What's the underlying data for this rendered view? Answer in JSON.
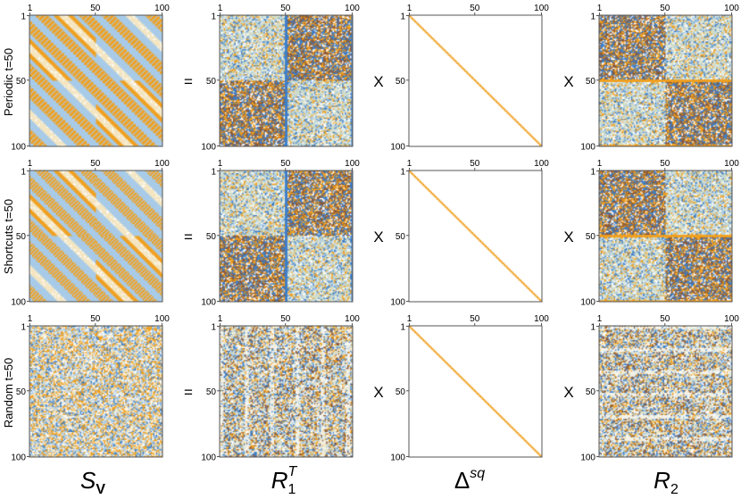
{
  "figure": {
    "row_labels": [
      "Periodic t=50",
      "Shortcuts t=50",
      "Random t=50"
    ],
    "operators": [
      "=",
      "X",
      "X"
    ],
    "tick_labels": [
      "1",
      "50",
      "100"
    ],
    "columns": [
      {
        "main": "S",
        "sub": "V",
        "sup": ""
      },
      {
        "main": "R",
        "sub": "1",
        "sup": "T"
      },
      {
        "main": "Δ",
        "sub": "",
        "sup": "sq"
      },
      {
        "main": "R",
        "sub": "2",
        "sup": ""
      }
    ],
    "matrix_types": [
      [
        "block-toeplitz",
        "oscillatory-blocks",
        "diagonal",
        "oscillatory-blocks-t"
      ],
      [
        "block-toeplitz-stripes",
        "oscillatory-blocks",
        "diagonal",
        "oscillatory-blocks-t"
      ],
      [
        "random",
        "random-blocks",
        "diagonal",
        "random-blocks-t"
      ]
    ],
    "matrix_size": 100,
    "colors": {
      "orange": "#f0a020",
      "blue": "#3f7fc8",
      "light_blue": "#a8cbe8",
      "cream": "#f4e6c2",
      "brown": "#8a5a3a",
      "sage": "#d3ddc8",
      "axis": "#555555"
    }
  }
}
